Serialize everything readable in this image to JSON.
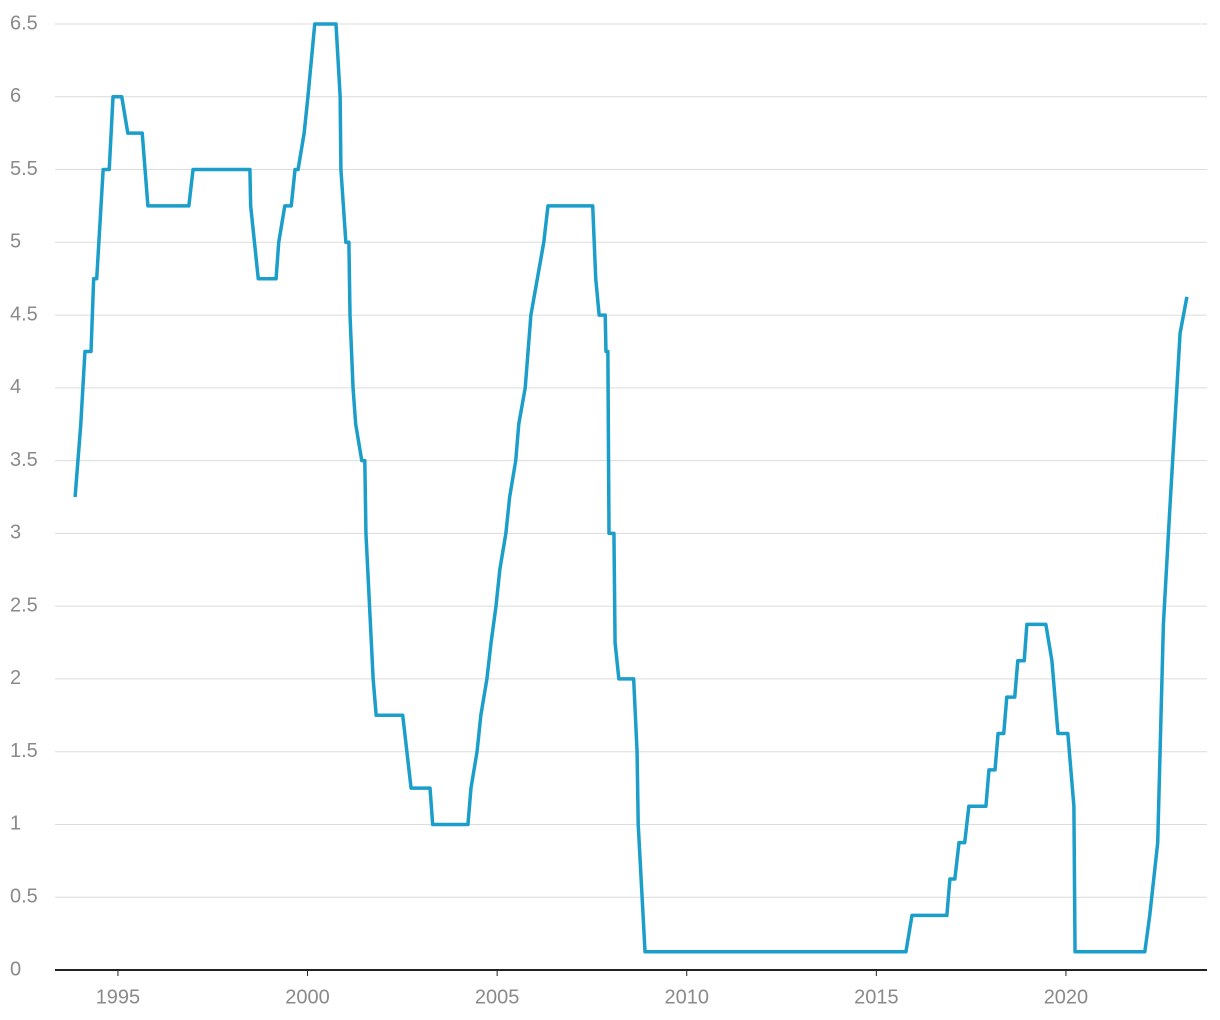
{
  "chart_data": {
    "type": "line",
    "grid": true,
    "x": [
      1993.87,
      1994.02,
      1994.13,
      1994.29,
      1994.36,
      1994.44,
      1994.61,
      1994.77,
      1994.87,
      1995.1,
      1995.26,
      1995.64,
      1995.79,
      1996.87,
      1996.98,
      1998.48,
      1998.5,
      1998.7,
      1999.17,
      1999.24,
      1999.4,
      1999.57,
      1999.67,
      1999.75,
      1999.91,
      2000.01,
      2000.19,
      2000.75,
      2000.86,
      2000.88,
      2001.01,
      2001.09,
      2001.12,
      2001.2,
      2001.27,
      2001.43,
      2001.51,
      2001.54,
      2001.73,
      2001.81,
      2002.51,
      2002.73,
      2003.23,
      2003.3,
      2004.23,
      2004.31,
      2004.47,
      2004.57,
      2004.73,
      2004.84,
      2004.97,
      2005.07,
      2005.23,
      2005.33,
      2005.49,
      2005.57,
      2005.74,
      2005.89,
      2006.23,
      2006.34,
      2007.52,
      2007.6,
      2007.69,
      2007.85,
      2007.87,
      2007.92,
      2007.95,
      2008.08,
      2008.11,
      2008.21,
      2008.6,
      2008.69,
      2008.72,
      2008.9,
      2015.78,
      2015.94,
      2016.86,
      2016.94,
      2017.07,
      2017.18,
      2017.33,
      2017.44,
      2017.89,
      2017.97,
      2018.13,
      2018.21,
      2018.36,
      2018.44,
      2018.65,
      2018.73,
      2018.9,
      2018.97,
      2019.47,
      2019.63,
      2019.79,
      2020.05,
      2020.21,
      2020.24,
      2022.08,
      2022.21,
      2022.42,
      2022.57,
      2022.73,
      2023.01,
      2023.19
    ],
    "series": [
      {
        "color": "#1b9fca",
        "values": [
          3.25,
          3.75,
          4.25,
          4.25,
          4.75,
          4.75,
          5.5,
          5.5,
          6,
          6,
          5.75,
          5.75,
          5.25,
          5.25,
          5.5,
          5.5,
          5.25,
          4.75,
          4.75,
          5,
          5.25,
          5.25,
          5.5,
          5.5,
          5.75,
          6,
          6.5,
          6.5,
          6,
          5.5,
          5,
          5,
          4.5,
          4,
          3.75,
          3.5,
          3.5,
          3,
          2,
          1.75,
          1.75,
          1.25,
          1.25,
          1,
          1,
          1.25,
          1.5,
          1.75,
          2,
          2.25,
          2.5,
          2.75,
          3,
          3.25,
          3.5,
          3.75,
          4,
          4.5,
          5,
          5.25,
          5.25,
          4.75,
          4.5,
          4.5,
          4.25,
          4.25,
          3,
          3,
          2.25,
          2,
          2,
          1.5,
          1,
          0.125,
          0.125,
          0.375,
          0.375,
          0.625,
          0.625,
          0.875,
          0.875,
          1.125,
          1.125,
          1.375,
          1.375,
          1.625,
          1.625,
          1.875,
          1.875,
          2.125,
          2.125,
          2.375,
          2.375,
          2.125,
          1.625,
          1.625,
          1.125,
          0.125,
          0.125,
          0.375,
          0.875,
          2.375,
          3.125,
          4.375,
          4.625
        ]
      }
    ],
    "xlim": [
      1993.34,
      2023.72
    ],
    "xticks": [
      1995,
      2000,
      2005,
      2010,
      2015,
      2020
    ],
    "ylim": [
      0,
      6.5
    ],
    "yticks": [
      0,
      0.5,
      1,
      1.5,
      2,
      2.5,
      3,
      3.5,
      4,
      4.5,
      5,
      5.5,
      6,
      6.5
    ]
  }
}
